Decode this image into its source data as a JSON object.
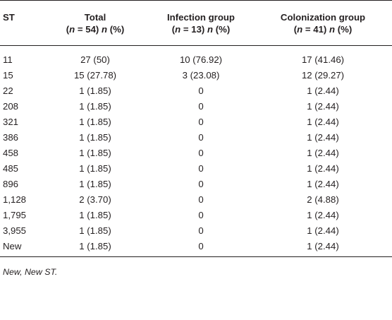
{
  "table": {
    "headers": {
      "st": "ST",
      "total_line1": "Total",
      "total_n": "n",
      "total_count": " = 54) ",
      "total_n2": "n",
      "total_pct": " (%)",
      "inf_line1": "Infection group",
      "inf_n": "n",
      "inf_count": " = 13) ",
      "inf_n2": "n",
      "inf_pct": " (%)",
      "col_line1": "Colonization group",
      "col_n": "n",
      "col_count": " = 41) ",
      "col_n2": "n",
      "col_pct": " (%)",
      "open_paren": "("
    },
    "rows": [
      {
        "st": "11",
        "total": "27 (50)",
        "infection": "10 (76.92)",
        "colonization": "17 (41.46)"
      },
      {
        "st": "15",
        "total": "15 (27.78)",
        "infection": "3 (23.08)",
        "colonization": "12 (29.27)"
      },
      {
        "st": "22",
        "total": "1 (1.85)",
        "infection": "0",
        "colonization": "1 (2.44)"
      },
      {
        "st": "208",
        "total": "1 (1.85)",
        "infection": "0",
        "colonization": "1 (2.44)"
      },
      {
        "st": "321",
        "total": "1 (1.85)",
        "infection": "0",
        "colonization": "1 (2.44)"
      },
      {
        "st": "386",
        "total": "1 (1.85)",
        "infection": "0",
        "colonization": "1 (2.44)"
      },
      {
        "st": "458",
        "total": "1 (1.85)",
        "infection": "0",
        "colonization": "1 (2.44)"
      },
      {
        "st": "485",
        "total": "1 (1.85)",
        "infection": "0",
        "colonization": "1 (2.44)"
      },
      {
        "st": "896",
        "total": "1 (1.85)",
        "infection": "0",
        "colonization": "1 (2.44)"
      },
      {
        "st": "1,128",
        "total": "2 (3.70)",
        "infection": "0",
        "colonization": "2 (4.88)"
      },
      {
        "st": "1,795",
        "total": "1 (1.85)",
        "infection": "0",
        "colonization": "1 (2.44)"
      },
      {
        "st": "3,955",
        "total": "1 (1.85)",
        "infection": "0",
        "colonization": "1 (2.44)"
      },
      {
        "st": "New",
        "total": "1 (1.85)",
        "infection": "0",
        "colonization": "1 (2.44)"
      }
    ]
  },
  "footnote": "New, New ST."
}
